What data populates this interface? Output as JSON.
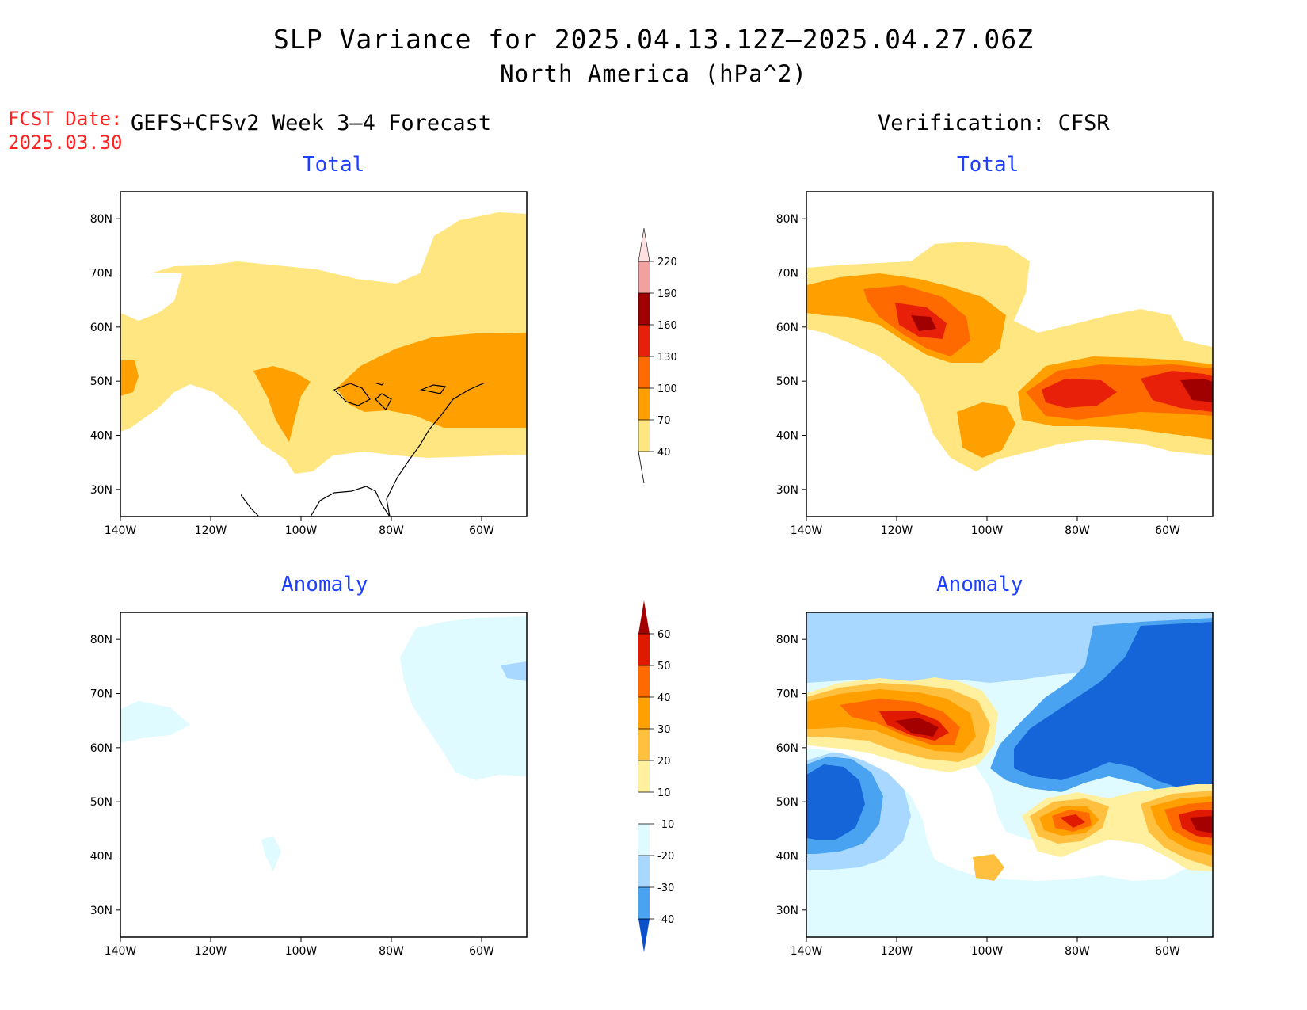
{
  "title": {
    "line1": "SLP Variance for 2025.04.13.12Z–2025.04.27.06Z",
    "line2": "North America (hPa^2)"
  },
  "forecast_date": {
    "label": "FCST Date:",
    "value": "2025.03.30"
  },
  "left_column_title": "GEFS+CFSv2 Week 3–4 Forecast",
  "right_column_title": "Verification: CFSR",
  "panels": {
    "fc_total": {
      "title": "Total"
    },
    "fc_anom": {
      "title": "Anomaly"
    },
    "vf_total": {
      "title": "Total"
    },
    "vf_anom": {
      "title": "Anomaly"
    }
  },
  "axes": {
    "lon_ticks": [
      "140W",
      "120W",
      "100W",
      "80W",
      "60W"
    ],
    "lat_ticks": [
      "80N",
      "70N",
      "60N",
      "50N",
      "40N",
      "30N"
    ],
    "lon_range": [
      -140,
      -50
    ],
    "lat_range": [
      25,
      85
    ]
  },
  "colorbars": {
    "total": {
      "levels": [
        "40",
        "70",
        "100",
        "130",
        "160",
        "190",
        "220"
      ],
      "colors": [
        "#ffe680",
        "#ffa000",
        "#ff6a00",
        "#e8200a",
        "#a00000",
        "#f2a0a0",
        "#ffe0e0"
      ]
    },
    "anomaly": {
      "levels": [
        "60",
        "50",
        "40",
        "30",
        "20",
        "10",
        "-10",
        "-20",
        "-30",
        "-40"
      ],
      "colors": [
        "#a50000",
        "#e01a00",
        "#ff6a00",
        "#ffa000",
        "#ffc040",
        "#fff0a0",
        "#ffffff",
        "#e0fbff",
        "#a8d8ff",
        "#4aa3f0",
        "#1565d8",
        "#0a50c8"
      ]
    }
  }
}
